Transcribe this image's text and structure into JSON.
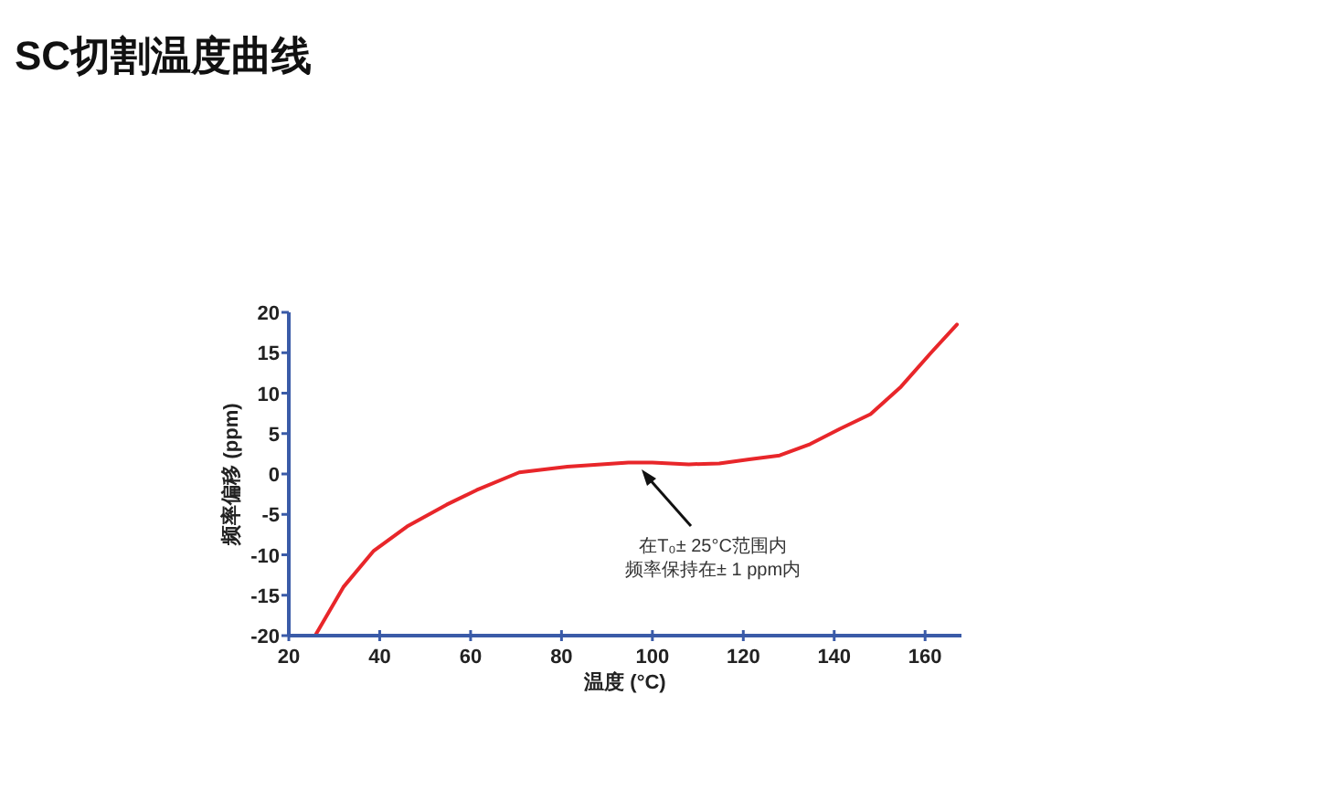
{
  "chart_data": {
    "type": "line",
    "title": "SC切割温度曲线",
    "xlabel": "温度 (°C)",
    "ylabel": "频率偏移 (ppm)",
    "x": [
      26,
      32,
      38.7,
      46,
      54.7,
      61.3,
      70.7,
      81.3,
      94.7,
      100,
      108,
      114.7,
      121.3,
      128,
      134.7,
      141.3,
      148,
      154.7,
      161.3,
      167
    ],
    "series": [
      {
        "color": "#e8262a",
        "values": [
          -19.8,
          -14,
          -9.5,
          -6.5,
          -3.8,
          -2,
          0.2,
          0.9,
          1.4,
          1.4,
          1.2,
          1.3,
          1.8,
          2.3,
          3.7,
          5.6,
          7.4,
          10.8,
          15,
          18.5
        ]
      }
    ],
    "xlim": [
      20,
      168
    ],
    "ylim": [
      -20,
      20
    ],
    "xticks": [
      20,
      40,
      60,
      80,
      100,
      120,
      140,
      160
    ],
    "yticks": [
      -20,
      -15,
      -10,
      -5,
      0,
      5,
      10,
      15,
      20
    ],
    "grid": false,
    "marker": "none",
    "line_style": "solid",
    "annotations": [
      "在T₀± 25°C范围内",
      "频率保持在± 1 ppm内"
    ]
  }
}
